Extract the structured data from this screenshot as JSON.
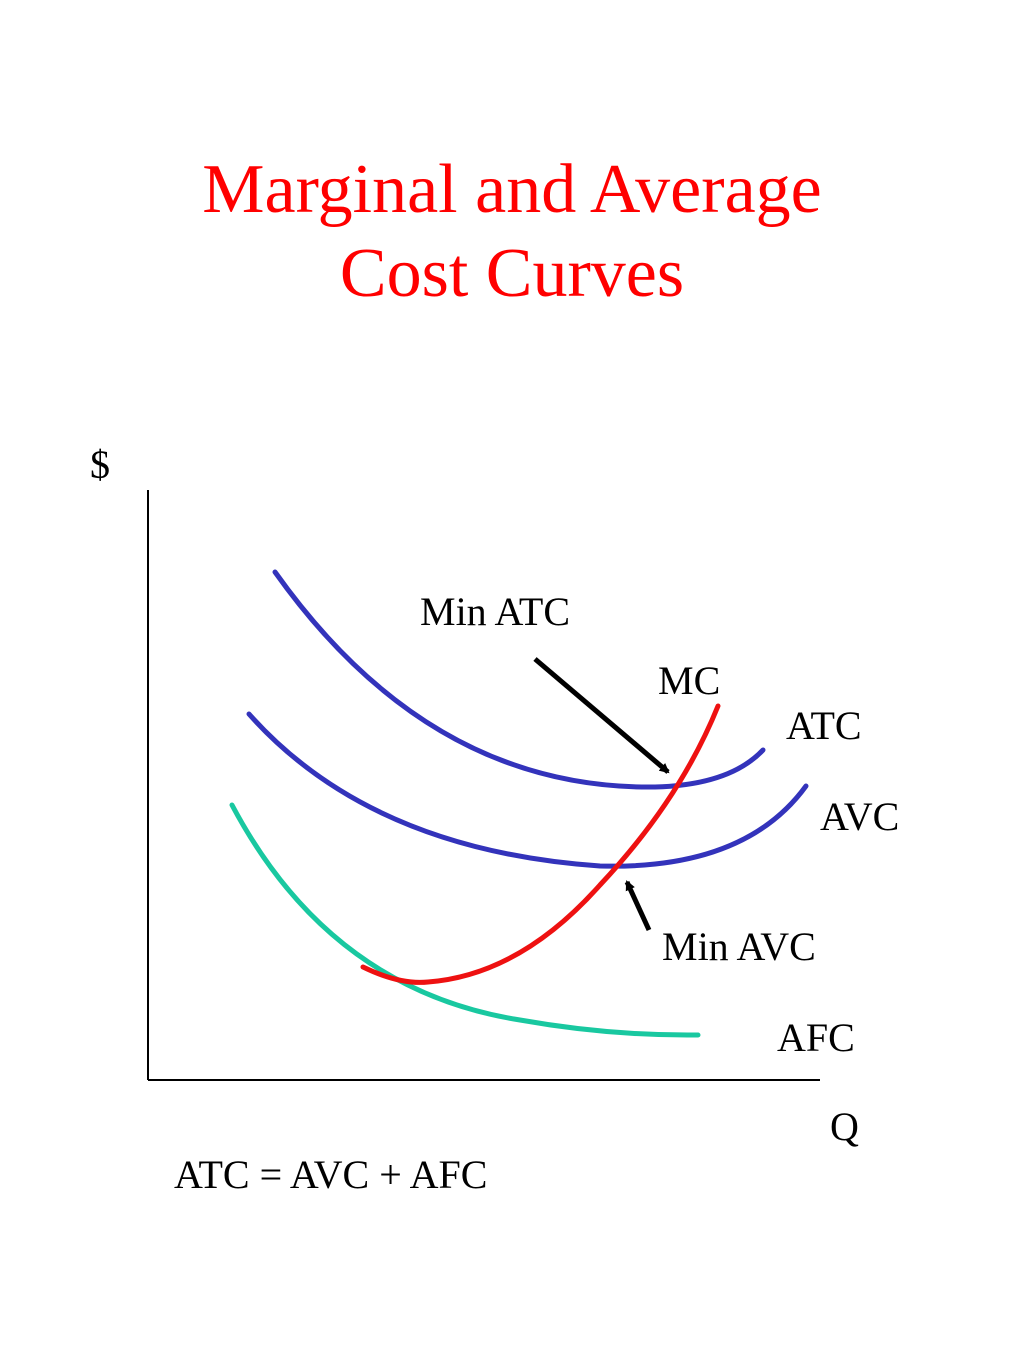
{
  "title": {
    "line1": "Marginal and Average",
    "line2": "Cost Curves"
  },
  "axes": {
    "y_label": "$",
    "x_label": "Q"
  },
  "curves": {
    "atc": {
      "label": "ATC",
      "color": "#3333bb"
    },
    "avc": {
      "label": "AVC",
      "color": "#3333bb"
    },
    "afc": {
      "label": "AFC",
      "color": "#19c8a0"
    },
    "mc": {
      "label": "MC",
      "color": "#ee1111"
    }
  },
  "annotations": {
    "min_atc": "Min ATC",
    "min_avc": "Min AVC"
  },
  "equation": "ATC = AVC + AFC",
  "colors": {
    "title": "#ff0000",
    "axes": "#000000",
    "arrow": "#000000"
  }
}
